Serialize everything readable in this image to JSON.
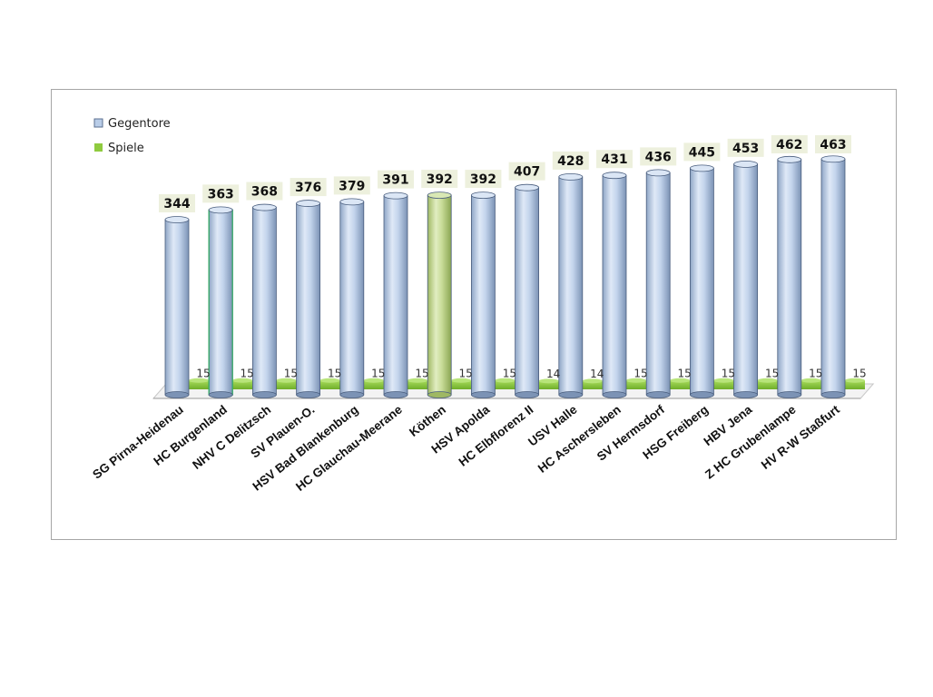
{
  "chart_data": {
    "type": "bar",
    "title": "",
    "xlabel": "",
    "ylabel": "",
    "ylim": [
      0,
      480
    ],
    "grid": false,
    "legend_position": "top-left",
    "categories": [
      "SG Pirna-Heidenau",
      "HC Burgenland",
      "NHV C Delitzsch",
      "SV Plauen-O.",
      "HSV Bad Blankenburg",
      "HC Glauchau-Meerane",
      "Köthen",
      "HSV Apolda",
      "HC Elbflorenz II",
      "USV Halle",
      "HC Aschersleben",
      "SV Hermsdorf",
      "HSG Freiberg",
      "HBV Jena",
      "Z HC Grubenlampe",
      "HV R-W Staßfurt"
    ],
    "series": [
      {
        "name": "Gegentore",
        "color": "#b9cde8",
        "values": [
          344,
          363,
          368,
          376,
          379,
          391,
          392,
          392,
          407,
          428,
          431,
          436,
          445,
          453,
          462,
          463
        ]
      },
      {
        "name": "Spiele",
        "color": "#8fcb3f",
        "values": [
          15,
          15,
          15,
          15,
          15,
          15,
          15,
          15,
          14,
          14,
          15,
          15,
          15,
          15,
          15,
          15
        ]
      }
    ],
    "highlight": {
      "index": 6,
      "color": "#c6dc96"
    },
    "outline_highlight": {
      "index": 1,
      "color": "#3aa86a"
    }
  }
}
